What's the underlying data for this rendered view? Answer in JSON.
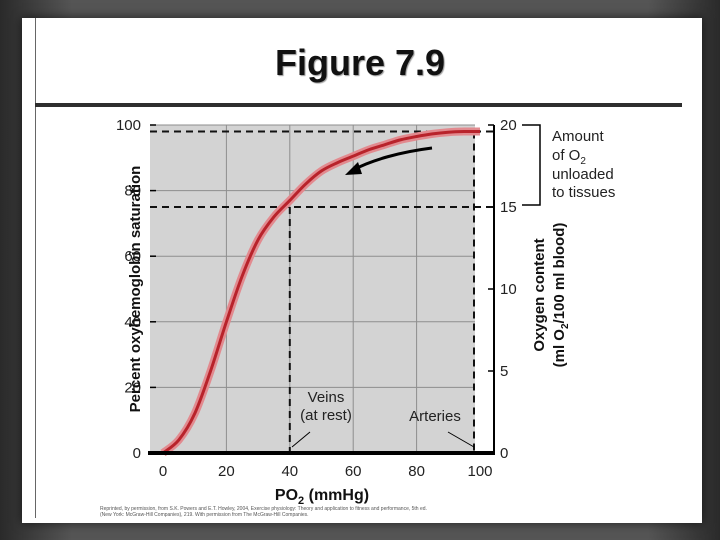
{
  "slide": {
    "title": "Figure 7.9",
    "credit_line_1": "Reprinted, by permission, from S.K. Powers and E.T. Howley, 2004, Exercise physiology: Theory and application to fitness and performance, 5th ed.",
    "credit_line_2": "(New York: McGraw-Hill Companies), 219. With permission from The McGraw-Hill Companies."
  },
  "chart_data": {
    "type": "line",
    "title": "",
    "xlabel": "PO2 (mmHg)",
    "ylabel": "Percent oxyhemoglobin saturation",
    "y2label_line1": "Oxygen content",
    "y2label_line2": "(ml O2/100 ml blood)",
    "xlim": [
      0,
      100
    ],
    "ylim": [
      0,
      100
    ],
    "y2lim": [
      0,
      20
    ],
    "x_ticks": [
      "0",
      "20",
      "40",
      "60",
      "80",
      "100"
    ],
    "y_ticks": [
      "0",
      "20",
      "40",
      "60",
      "80",
      "100"
    ],
    "y2_ticks": [
      "0",
      "5",
      "10",
      "15",
      "20"
    ],
    "grid": true,
    "series": [
      {
        "x": [
          0,
          5,
          10,
          15,
          20,
          25,
          30,
          35,
          40,
          45,
          50,
          55,
          60,
          65,
          70,
          75,
          80,
          85,
          90,
          95,
          100
        ],
        "y": [
          0,
          4,
          12,
          25,
          40,
          54,
          65,
          72,
          77,
          82,
          86,
          88.5,
          90.5,
          92.5,
          94,
          95.5,
          96.5,
          97.3,
          97.8,
          98,
          98
        ]
      }
    ],
    "reference_lines": {
      "veins": {
        "x": 40,
        "y": 75
      },
      "arteries": {
        "x": 100,
        "y": 98
      }
    },
    "annotations": {
      "amount_lines": [
        "Amount",
        "of O2",
        "unloaded",
        "to tissues"
      ],
      "veins_lines": [
        "Veins",
        "(at rest)"
      ],
      "arteries": "Arteries"
    },
    "colors": {
      "curve": "#b8232b",
      "curve_glow": "#e28a8f",
      "plot_bg": "#d3d3d3"
    }
  }
}
